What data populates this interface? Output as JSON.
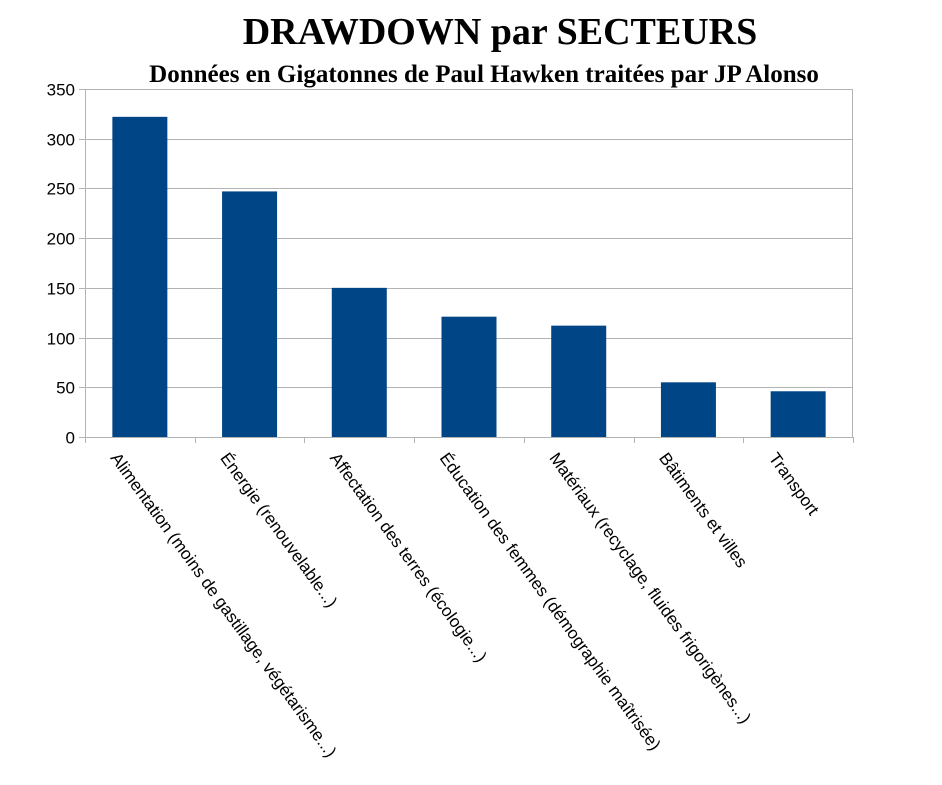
{
  "chart_data": {
    "type": "bar",
    "title": "DRAWDOWN par SECTEURS",
    "subtitle": "Données en Gigatonnes de Paul Hawken traitées par JP Alonso",
    "xlabel": "",
    "ylabel": "",
    "categories": [
      "Alimentation (moins de gastillage, végétarisme...)",
      "Énergie (renouvelable...)",
      "Affectation des terres (écologie...)",
      "Éducation des femmes (démographie maîtrisée)",
      "Matériaux (recyclage, fluides frigorigènes...)",
      "Bâtiments et villes",
      "Transport"
    ],
    "values": [
      322,
      247,
      150,
      121,
      112,
      55,
      46
    ],
    "ylim": [
      0,
      350
    ],
    "yticks": [
      0,
      50,
      100,
      150,
      200,
      250,
      300,
      350
    ],
    "grid": true,
    "legend": "none",
    "bar_color": "#004586",
    "grid_color": "#b3b3b3"
  }
}
